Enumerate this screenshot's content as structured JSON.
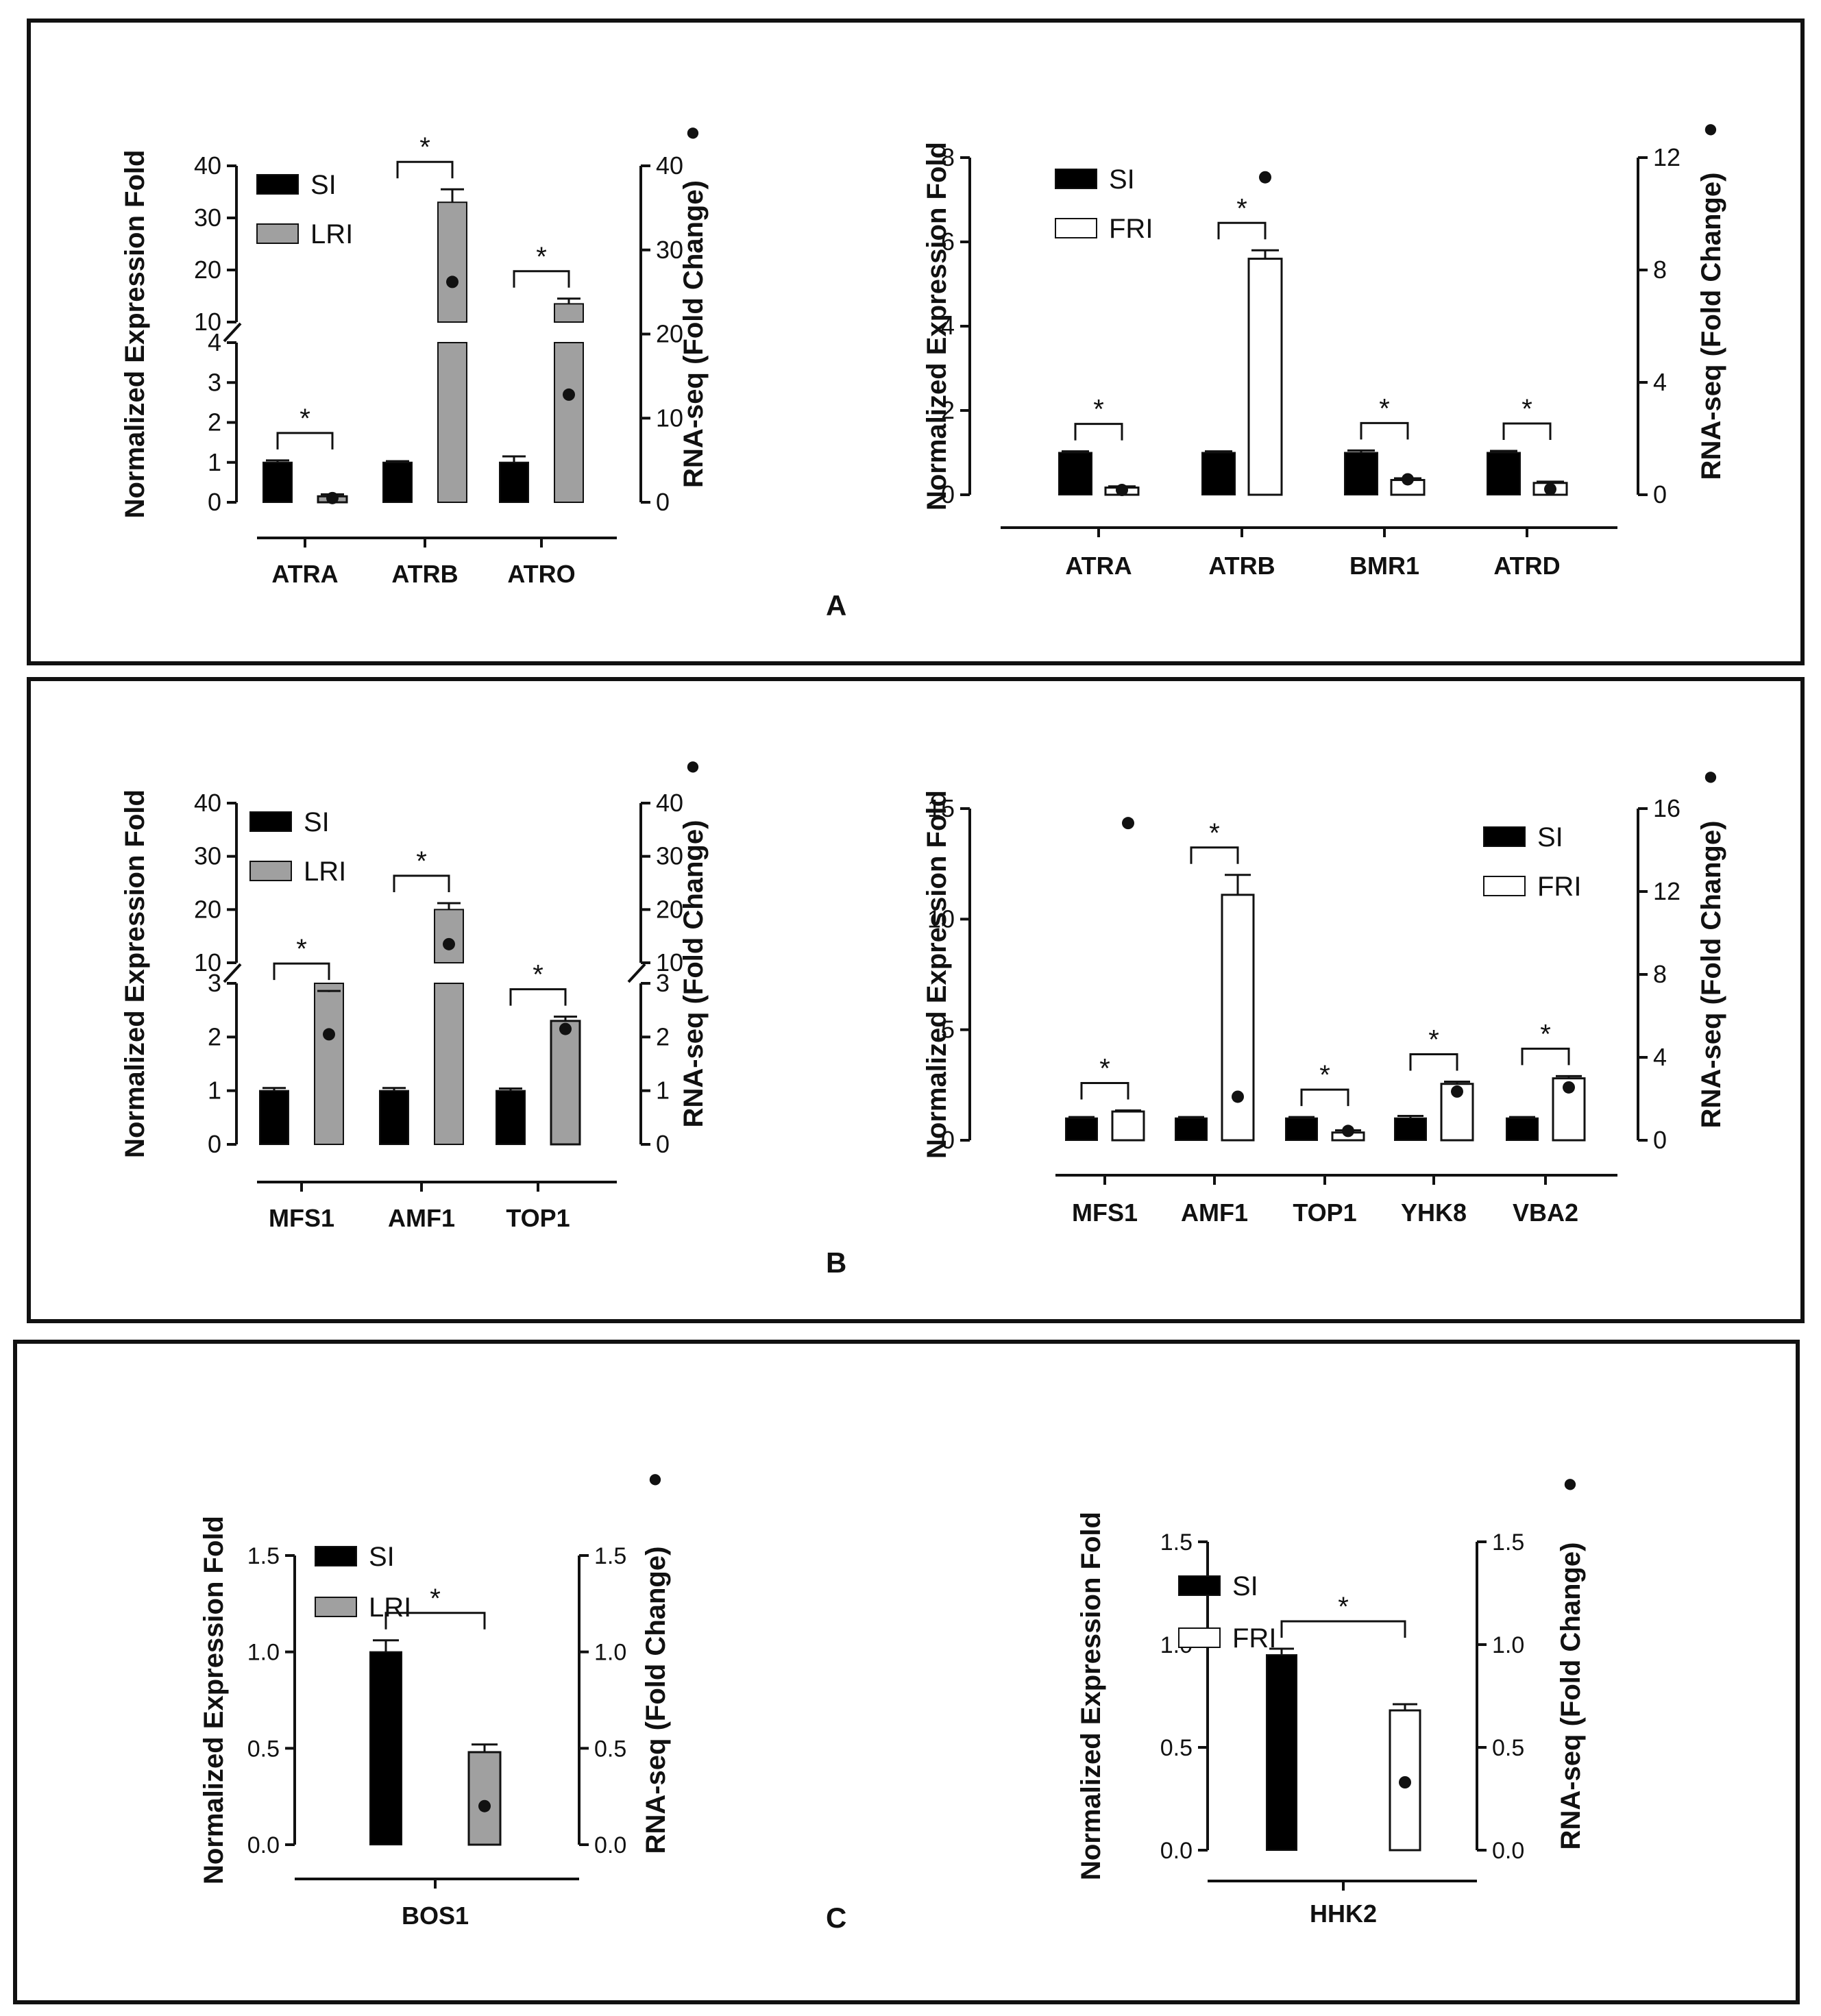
{
  "panel_labels": [
    "A",
    "B",
    "C"
  ],
  "colors": {
    "si": "#000000",
    "lri": "#a0a0a0",
    "fri": "#ffffff",
    "axis": "#111111"
  },
  "chart_data": [
    {
      "id": "A-left",
      "panel": "A",
      "type": "bar",
      "broken_axis": true,
      "ylabel": "Normalized Expression Fold",
      "y2label": "RNA-seq (Fold Change)",
      "y2marker": "●",
      "categories": [
        "ATRA",
        "ATRB",
        "ATRO"
      ],
      "legend": [
        "SI",
        "LRI"
      ],
      "lower_ticks": [
        "0",
        "1",
        "2",
        "3",
        "4"
      ],
      "upper_ticks": [
        "10",
        "20",
        "30",
        "40"
      ],
      "right_lower_ticks": [
        "0",
        "10",
        "20"
      ],
      "right_upper_ticks": [
        "30",
        "40"
      ],
      "series": [
        {
          "name": "SI",
          "values": [
            1.0,
            1.0,
            1.0
          ],
          "errors": [
            0.05,
            0.03,
            0.15
          ]
        },
        {
          "name": "LRI",
          "values": [
            0.15,
            33,
            13.5
          ],
          "errors": [
            0.05,
            2.5,
            1.0
          ]
        }
      ],
      "rnaseq": [
        0.5,
        26.2,
        12.8
      ],
      "significance": [
        {
          "category": "ATRA",
          "label": "*"
        },
        {
          "category": "ATRB",
          "label": "*"
        },
        {
          "category": "ATRO",
          "label": "*"
        }
      ]
    },
    {
      "id": "A-right",
      "panel": "A",
      "type": "bar",
      "ylabel": "Normalized Expression Fold",
      "y2label": "RNA-seq (Fold Change)",
      "y2marker": "●",
      "categories": [
        "ATRA",
        "ATRB",
        "BMR1",
        "ATRD"
      ],
      "legend": [
        "SI",
        "FRI"
      ],
      "left_ticks": [
        "0",
        "2",
        "4",
        "6",
        "8"
      ],
      "right_ticks": [
        "0",
        "4",
        "8",
        "12"
      ],
      "ylim": [
        0,
        8
      ],
      "y2lim": [
        0,
        12
      ],
      "series": [
        {
          "name": "SI",
          "values": [
            1.0,
            1.0,
            1.0,
            1.0
          ],
          "errors": [
            0.03,
            0.03,
            0.05,
            0.04
          ]
        },
        {
          "name": "FRI",
          "values": [
            0.17,
            5.6,
            0.35,
            0.28
          ],
          "errors": [
            0.03,
            0.2,
            0.04,
            0.03
          ]
        }
      ],
      "rnaseq": [
        0.17,
        11.3,
        0.55,
        0.2
      ],
      "significance": [
        {
          "category": "ATRA",
          "label": "*"
        },
        {
          "category": "ATRB",
          "label": "*"
        },
        {
          "category": "BMR1",
          "label": "*"
        },
        {
          "category": "ATRD",
          "label": "*"
        }
      ]
    },
    {
      "id": "B-left",
      "panel": "B",
      "type": "bar",
      "broken_axis": true,
      "ylabel": "Normalized Expression Fold",
      "y2label": "RNA-seq (Fold Change)",
      "y2marker": "●",
      "categories": [
        "MFS1",
        "AMF1",
        "TOP1"
      ],
      "legend": [
        "SI",
        "LRI"
      ],
      "lower_ticks": [
        "0",
        "1",
        "2",
        "3"
      ],
      "upper_ticks": [
        "10",
        "20",
        "30",
        "40"
      ],
      "right_lower_ticks": [
        "0",
        "1",
        "2",
        "3"
      ],
      "right_upper_ticks": [
        "10",
        "20",
        "30",
        "40"
      ],
      "series": [
        {
          "name": "SI",
          "values": [
            1.0,
            1.0,
            1.0
          ],
          "errors": [
            0.05,
            0.05,
            0.04
          ]
        },
        {
          "name": "LRI",
          "values": [
            4.5,
            20,
            2.3
          ],
          "errors": [
            0.2,
            1.2,
            0.08
          ]
        }
      ],
      "rnaseq": [
        2.05,
        13.5,
        2.15
      ],
      "significance": [
        {
          "category": "MFS1",
          "label": "*"
        },
        {
          "category": "AMF1",
          "label": "*"
        },
        {
          "category": "TOP1",
          "label": "*"
        }
      ]
    },
    {
      "id": "B-right",
      "panel": "B",
      "type": "bar",
      "ylabel": "Normalized Expression Fold",
      "y2label": "RNA-seq (Fold Change)",
      "y2marker": "●",
      "categories": [
        "MFS1",
        "AMF1",
        "TOP1",
        "YHK8",
        "VBA2"
      ],
      "legend": [
        "SI",
        "FRI"
      ],
      "left_ticks": [
        "0",
        "5",
        "10",
        "15"
      ],
      "right_ticks": [
        "0",
        "4",
        "8",
        "12",
        "16"
      ],
      "ylim": [
        0,
        15
      ],
      "y2lim": [
        0,
        16
      ],
      "series": [
        {
          "name": "SI",
          "values": [
            1.0,
            1.0,
            1.0,
            1.0,
            1.0
          ],
          "errors": [
            0.05,
            0.05,
            0.05,
            0.1,
            0.05
          ]
        },
        {
          "name": "FRI",
          "values": [
            1.3,
            11.1,
            0.35,
            2.55,
            2.8
          ],
          "errors": [
            0.05,
            0.9,
            0.1,
            0.1,
            0.1
          ]
        }
      ],
      "rnaseq": [
        15.3,
        2.1,
        0.45,
        2.35,
        2.55
      ],
      "significance": [
        {
          "category": "MFS1",
          "label": "*"
        },
        {
          "category": "AMF1",
          "label": "*"
        },
        {
          "category": "TOP1",
          "label": "*"
        },
        {
          "category": "YHK8",
          "label": "*"
        },
        {
          "category": "VBA2",
          "label": "*"
        }
      ]
    },
    {
      "id": "C-left",
      "panel": "C",
      "type": "bar",
      "ylabel": "Normalized Expression Fold",
      "y2label": "RNA-seq (Fold Change)",
      "y2marker": "●",
      "categories": [
        "BOS1"
      ],
      "legend": [
        "SI",
        "LRI"
      ],
      "left_ticks": [
        "0.0",
        "0.5",
        "1.0",
        "1.5"
      ],
      "right_ticks": [
        "0.0",
        "0.5",
        "1.0",
        "1.5"
      ],
      "ylim": [
        0,
        1.5
      ],
      "y2lim": [
        0,
        1.5
      ],
      "series": [
        {
          "name": "SI",
          "values": [
            1.0
          ],
          "errors": [
            0.06
          ]
        },
        {
          "name": "LRI",
          "values": [
            0.48
          ],
          "errors": [
            0.04
          ]
        }
      ],
      "rnaseq": [
        0.2
      ],
      "significance": [
        {
          "category": "BOS1",
          "label": "*"
        }
      ]
    },
    {
      "id": "C-right",
      "panel": "C",
      "type": "bar",
      "ylabel": "Normalized Expression Fold",
      "y2label": "RNA-seq (Fold Change)",
      "y2marker": "●",
      "categories": [
        "HHK2"
      ],
      "legend": [
        "SI",
        "FRI"
      ],
      "left_ticks": [
        "0.0",
        "0.5",
        "1.0",
        "1.5"
      ],
      "right_ticks": [
        "0.0",
        "0.5",
        "1.0",
        "1.5"
      ],
      "ylim": [
        0,
        1.5
      ],
      "y2lim": [
        0,
        1.5
      ],
      "series": [
        {
          "name": "SI",
          "values": [
            0.95
          ],
          "errors": [
            0.03
          ]
        },
        {
          "name": "FRI",
          "values": [
            0.68
          ],
          "errors": [
            0.03
          ]
        }
      ],
      "rnaseq": [
        0.33
      ],
      "significance": [
        {
          "category": "HHK2",
          "label": "*"
        }
      ]
    }
  ]
}
